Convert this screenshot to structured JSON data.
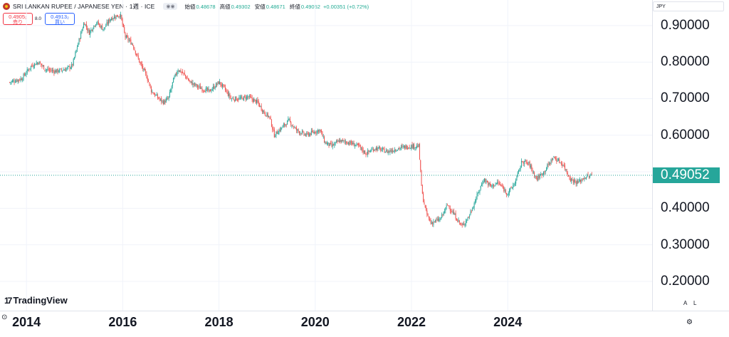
{
  "header": {
    "title": "SRI LANKAN RUPEE / JAPANESE YEN · 1週 · ICE",
    "toggle_icon": "eye-icon",
    "ohlc": [
      {
        "key": "始値",
        "value": "0.48678"
      },
      {
        "key": "高値",
        "value": "0.49302"
      },
      {
        "key": "安値",
        "value": "0.48671"
      },
      {
        "key": "終値",
        "value": "0.49052"
      }
    ],
    "change": "+0.00351 (+0.72%)"
  },
  "trade": {
    "sell_price": "0.4905₂",
    "sell_label": "売り",
    "spread": "8.0",
    "buy_price": "0.4913₂",
    "buy_label": "買い"
  },
  "currency": "JPY",
  "last_price_label": "0.49052",
  "logo_text": "TradingView",
  "scale_buttons": {
    "auto": "A",
    "log": "L"
  },
  "colors": {
    "up": "#26a69a",
    "down": "#ef5350",
    "last_line": "#26a69a"
  },
  "chart_data": {
    "type": "candlestick",
    "interval": "weekly",
    "x_ticks": [
      "2014",
      "2016",
      "2018",
      "2020",
      "2022",
      "2024"
    ],
    "y_ticks": [
      "0.90000",
      "0.80000",
      "0.70000",
      "0.60000",
      "0.40000",
      "0.30000",
      "0.20000"
    ],
    "ylim": [
      0.12,
      0.97
    ],
    "xlim": [
      2013.45,
      2027.0
    ],
    "last_value": 0.49052,
    "grid": true,
    "approx_close_path": [
      [
        2013.65,
        0.745
      ],
      [
        2013.9,
        0.755
      ],
      [
        2014.1,
        0.79
      ],
      [
        2014.25,
        0.8
      ],
      [
        2014.4,
        0.78
      ],
      [
        2014.6,
        0.775
      ],
      [
        2014.8,
        0.78
      ],
      [
        2014.95,
        0.79
      ],
      [
        2015.05,
        0.84
      ],
      [
        2015.2,
        0.91
      ],
      [
        2015.3,
        0.88
      ],
      [
        2015.45,
        0.91
      ],
      [
        2015.6,
        0.89
      ],
      [
        2015.75,
        0.92
      ],
      [
        2015.95,
        0.93
      ],
      [
        2016.05,
        0.87
      ],
      [
        2016.2,
        0.85
      ],
      [
        2016.35,
        0.8
      ],
      [
        2016.5,
        0.76
      ],
      [
        2016.6,
        0.72
      ],
      [
        2016.75,
        0.7
      ],
      [
        2016.85,
        0.69
      ],
      [
        2016.95,
        0.7
      ],
      [
        2017.05,
        0.75
      ],
      [
        2017.15,
        0.78
      ],
      [
        2017.25,
        0.77
      ],
      [
        2017.4,
        0.745
      ],
      [
        2017.6,
        0.73
      ],
      [
        2017.8,
        0.72
      ],
      [
        2018.0,
        0.745
      ],
      [
        2018.1,
        0.73
      ],
      [
        2018.25,
        0.7
      ],
      [
        2018.45,
        0.7
      ],
      [
        2018.6,
        0.705
      ],
      [
        2018.8,
        0.69
      ],
      [
        2018.95,
        0.66
      ],
      [
        2019.05,
        0.65
      ],
      [
        2019.15,
        0.6
      ],
      [
        2019.3,
        0.62
      ],
      [
        2019.45,
        0.64
      ],
      [
        2019.6,
        0.615
      ],
      [
        2019.8,
        0.6
      ],
      [
        2020.0,
        0.61
      ],
      [
        2020.1,
        0.615
      ],
      [
        2020.2,
        0.58
      ],
      [
        2020.35,
        0.57
      ],
      [
        2020.5,
        0.585
      ],
      [
        2020.7,
        0.58
      ],
      [
        2020.9,
        0.57
      ],
      [
        2021.05,
        0.55
      ],
      [
        2021.25,
        0.565
      ],
      [
        2021.5,
        0.555
      ],
      [
        2021.75,
        0.565
      ],
      [
        2021.95,
        0.57
      ],
      [
        2022.15,
        0.57
      ],
      [
        2022.22,
        0.44
      ],
      [
        2022.3,
        0.39
      ],
      [
        2022.4,
        0.36
      ],
      [
        2022.6,
        0.37
      ],
      [
        2022.75,
        0.41
      ],
      [
        2022.9,
        0.38
      ],
      [
        2023.05,
        0.35
      ],
      [
        2023.2,
        0.38
      ],
      [
        2023.35,
        0.43
      ],
      [
        2023.5,
        0.48
      ],
      [
        2023.65,
        0.46
      ],
      [
        2023.8,
        0.47
      ],
      [
        2024.0,
        0.44
      ],
      [
        2024.15,
        0.47
      ],
      [
        2024.3,
        0.53
      ],
      [
        2024.45,
        0.52
      ],
      [
        2024.6,
        0.48
      ],
      [
        2024.75,
        0.5
      ],
      [
        2024.95,
        0.54
      ],
      [
        2025.15,
        0.52
      ],
      [
        2025.3,
        0.48
      ],
      [
        2025.45,
        0.47
      ],
      [
        2025.6,
        0.485
      ],
      [
        2025.75,
        0.49
      ]
    ]
  }
}
